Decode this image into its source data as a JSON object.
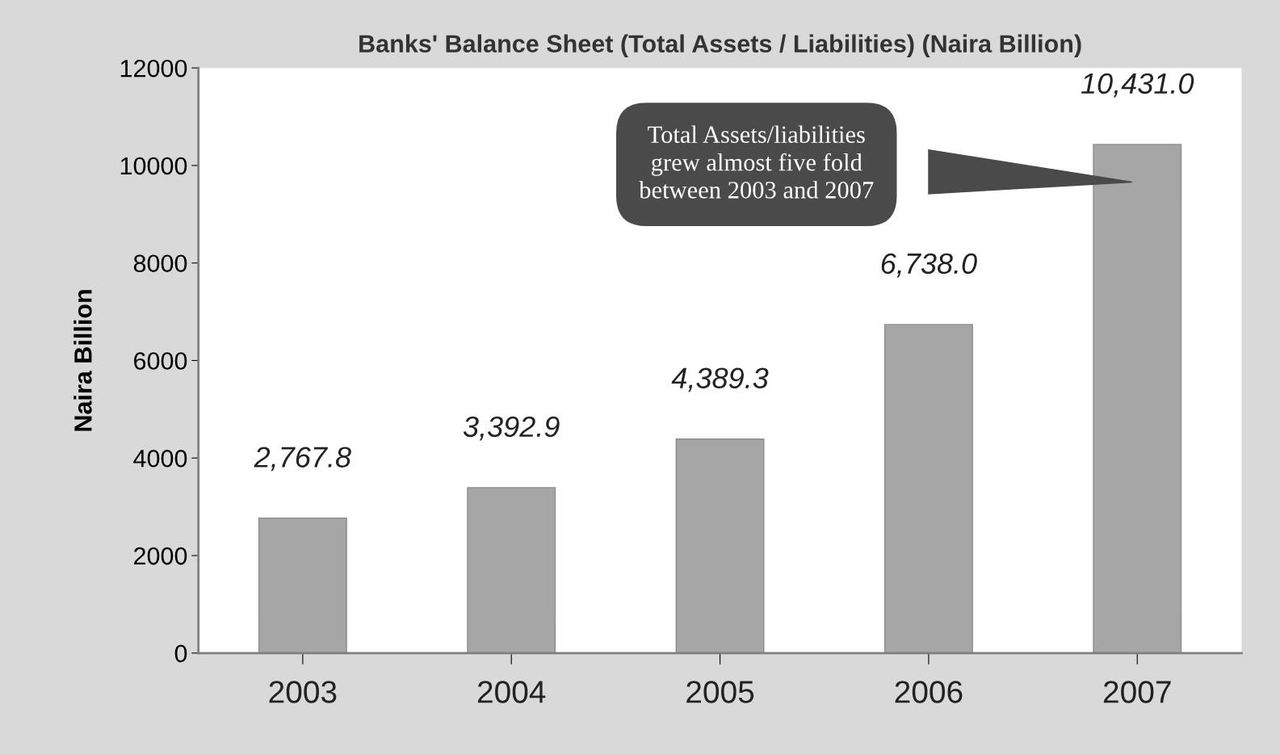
{
  "chart_data": {
    "type": "bar",
    "title": "Banks' Balance Sheet (Total Assets / Liabilities) (Naira Billion)",
    "ylabel": "Naira Billion",
    "categories": [
      "2003",
      "2004",
      "2005",
      "2006",
      "2007"
    ],
    "values": [
      2767.8,
      3392.9,
      4389.3,
      6738.0,
      10431.0
    ],
    "value_labels": [
      "2,767.8",
      "3,392.9",
      "4,389.3",
      "6,738.0",
      "10,431.0"
    ],
    "color": "#a6a6a6",
    "ylim": [
      0,
      12000
    ],
    "yticks": [
      0,
      2000,
      4000,
      6000,
      8000,
      10000,
      12000
    ],
    "grid": false,
    "annotations": [
      "Total Assets/liabilities\ngrew almost five fold\nbetween 2003 and 2007"
    ]
  }
}
